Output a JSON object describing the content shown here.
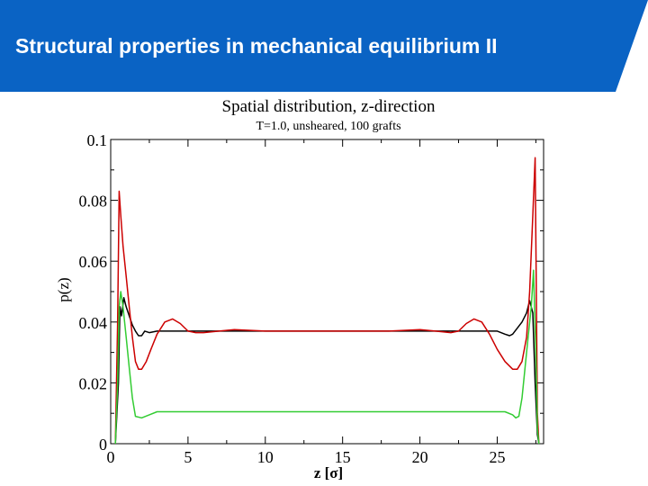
{
  "slide": {
    "title": "Structural properties in mechanical equilibrium II",
    "banner_color": "#0a63c4"
  },
  "chart_data": {
    "type": "line",
    "title": "Spatial distribution, z-direction",
    "subtitle": "T=1.0, unsheared, 100 grafts",
    "xlabel": "z [σ]",
    "ylabel": "p(z)",
    "xlim": [
      0,
      28
    ],
    "ylim": [
      0,
      0.1
    ],
    "x_ticks": [
      "0",
      "5",
      "10",
      "15",
      "20",
      "25"
    ],
    "y_ticks": [
      "0",
      "0.02",
      "0.04",
      "0.06",
      "0.08",
      "0.1"
    ],
    "grid": false,
    "legend": "none",
    "series": [
      {
        "color": "#000000",
        "x": [
          0.3,
          0.5,
          0.6,
          0.7,
          0.85,
          1.0,
          1.2,
          1.4,
          1.6,
          1.8,
          2.0,
          2.2,
          2.5,
          3.0,
          4.0,
          6.0,
          8.0,
          10.0,
          12.0,
          14.0,
          16.0,
          18.0,
          20.0,
          22.0,
          24.0,
          25.0,
          25.5,
          25.8,
          26.0,
          26.3,
          26.6,
          26.9,
          27.1,
          27.3,
          27.45,
          27.6,
          27.7
        ],
        "y": [
          0.0,
          0.02,
          0.045,
          0.042,
          0.048,
          0.045,
          0.042,
          0.039,
          0.037,
          0.0355,
          0.0355,
          0.037,
          0.0365,
          0.037,
          0.037,
          0.037,
          0.037,
          0.037,
          0.037,
          0.037,
          0.037,
          0.037,
          0.037,
          0.037,
          0.037,
          0.037,
          0.036,
          0.0355,
          0.036,
          0.038,
          0.04,
          0.043,
          0.047,
          0.043,
          0.02,
          0.003,
          0.0
        ]
      },
      {
        "color": "#cc0000",
        "x": [
          0.3,
          0.45,
          0.55,
          0.65,
          0.8,
          1.0,
          1.2,
          1.4,
          1.6,
          1.8,
          2.0,
          2.3,
          2.6,
          3.0,
          3.5,
          4.0,
          4.5,
          5.0,
          5.5,
          6.0,
          7.0,
          8.0,
          10.0,
          12.0,
          14.0,
          16.0,
          18.0,
          20.0,
          21.0,
          22.0,
          22.5,
          23.0,
          23.5,
          24.0,
          24.5,
          25.0,
          25.5,
          26.0,
          26.3,
          26.6,
          26.9,
          27.1,
          27.3,
          27.45,
          27.6,
          27.7
        ],
        "y": [
          0.0,
          0.04,
          0.083,
          0.075,
          0.065,
          0.055,
          0.045,
          0.035,
          0.027,
          0.0245,
          0.0245,
          0.027,
          0.031,
          0.036,
          0.04,
          0.041,
          0.0395,
          0.037,
          0.0365,
          0.0365,
          0.037,
          0.0375,
          0.037,
          0.037,
          0.037,
          0.037,
          0.037,
          0.0375,
          0.037,
          0.0365,
          0.037,
          0.0395,
          0.041,
          0.04,
          0.036,
          0.031,
          0.027,
          0.0245,
          0.0245,
          0.027,
          0.035,
          0.05,
          0.075,
          0.094,
          0.01,
          0.0
        ]
      },
      {
        "color": "#33cc33",
        "x": [
          0.3,
          0.45,
          0.55,
          0.65,
          0.8,
          1.0,
          1.2,
          1.4,
          1.6,
          2.0,
          2.5,
          3.0,
          4.0,
          6.0,
          8.0,
          10.0,
          12.0,
          14.0,
          16.0,
          18.0,
          20.0,
          22.0,
          24.0,
          25.0,
          25.5,
          26.0,
          26.2,
          26.4,
          26.6,
          26.8,
          27.0,
          27.2,
          27.35,
          27.5,
          27.6,
          27.7
        ],
        "y": [
          0.0,
          0.02,
          0.045,
          0.05,
          0.045,
          0.035,
          0.025,
          0.015,
          0.009,
          0.0085,
          0.0095,
          0.0105,
          0.0105,
          0.0105,
          0.0105,
          0.0105,
          0.0105,
          0.0105,
          0.0105,
          0.0105,
          0.0105,
          0.0105,
          0.0105,
          0.0105,
          0.0105,
          0.0095,
          0.0085,
          0.009,
          0.015,
          0.025,
          0.035,
          0.045,
          0.057,
          0.03,
          0.005,
          0.0
        ]
      }
    ]
  }
}
